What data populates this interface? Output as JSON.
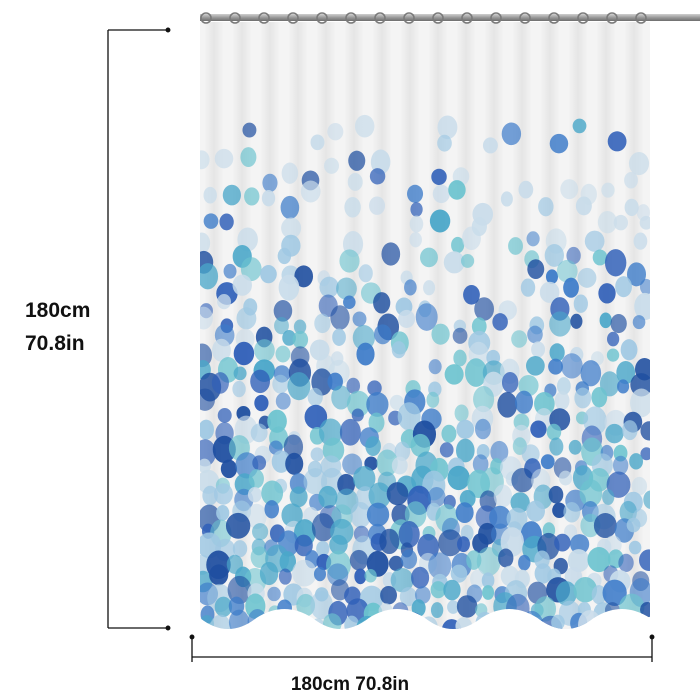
{
  "product": {
    "type_icon": "shower-curtain",
    "pattern": "watercolor-dots",
    "colors": {
      "curtain": "#f4f4f4",
      "rod": "#8c8c8c",
      "dot_palette": [
        "#2f5fb8",
        "#3c7bc9",
        "#4aa7c9",
        "#6cc3cf",
        "#9fc8e3",
        "#c9dcea",
        "#1f4fa0"
      ],
      "dimension_line": "#111111"
    }
  },
  "dimensions": {
    "height_cm": "180cm",
    "height_in": "70.8in",
    "width_text": "180cm 70.8in"
  }
}
